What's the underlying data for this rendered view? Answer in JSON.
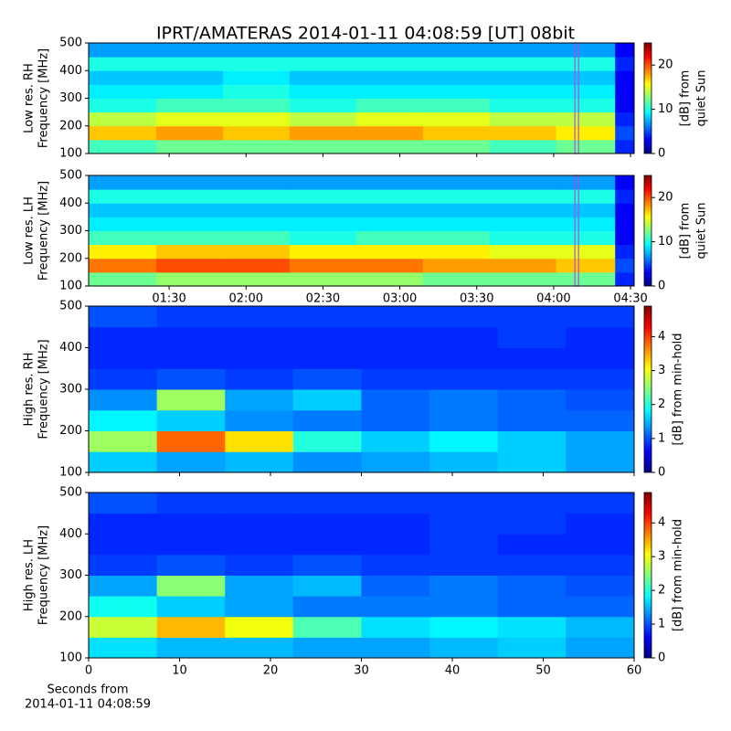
{
  "title": "IPRT/AMATERAS 2014-01-11 04:08:59 [UT]   08bit",
  "chart_data": [
    {
      "type": "heatmap",
      "ylabel": [
        "Low res. RH",
        "Frequency [MHz]"
      ],
      "colorbar_label": [
        "[dB] from",
        "quiet Sun"
      ],
      "clim": [
        0,
        25
      ],
      "cticks": [
        0,
        10,
        20
      ],
      "xlim": [
        58.6,
        271.4
      ],
      "share_x_with": 1,
      "x_bins": [
        58.6,
        85,
        111,
        137,
        163,
        189,
        215,
        241,
        264,
        271.4
      ],
      "ylim": [
        100,
        500
      ],
      "yticks": [
        100,
        200,
        300,
        400,
        500
      ],
      "y_bins": [
        100,
        150,
        200,
        250,
        300,
        350,
        400,
        450,
        500
      ],
      "marker_x": 249,
      "marker_color": "#b050d8",
      "z": [
        [
          11,
          12,
          12,
          12,
          12,
          12,
          11,
          12,
          4
        ],
        [
          17,
          18,
          17,
          18,
          18,
          17,
          17,
          16,
          5
        ],
        [
          14,
          15,
          15,
          14,
          15,
          15,
          14,
          14,
          4
        ],
        [
          10,
          11,
          11,
          10,
          11,
          11,
          10,
          10,
          3
        ],
        [
          9,
          9,
          10,
          9,
          9,
          9,
          9,
          9,
          3
        ],
        [
          8,
          8,
          9,
          8,
          8,
          8,
          8,
          8,
          3
        ],
        [
          10,
          10,
          10,
          10,
          10,
          10,
          10,
          10,
          4
        ],
        [
          7,
          7,
          7,
          7,
          7,
          7,
          7,
          7,
          3
        ]
      ]
    },
    {
      "type": "heatmap",
      "ylabel": [
        "Low res. LH",
        "Frequency [MHz]"
      ],
      "colorbar_label": [
        "[dB] from",
        "quiet Sun"
      ],
      "clim": [
        0,
        25
      ],
      "cticks": [
        0,
        10,
        20
      ],
      "xlim": [
        58.6,
        271.4
      ],
      "xticks": [
        {
          "value": 90,
          "label": "01:30"
        },
        {
          "value": 120,
          "label": "02:00"
        },
        {
          "value": 150,
          "label": "02:30"
        },
        {
          "value": 180,
          "label": "03:00"
        },
        {
          "value": 210,
          "label": "03:30"
        },
        {
          "value": 240,
          "label": "04:00"
        },
        {
          "value": 270,
          "label": "04:30"
        }
      ],
      "x_bins": [
        58.6,
        85,
        111,
        137,
        163,
        189,
        215,
        241,
        264,
        271.4
      ],
      "ylim": [
        100,
        500
      ],
      "yticks": [
        100,
        200,
        300,
        400,
        500
      ],
      "y_bins": [
        100,
        150,
        200,
        250,
        300,
        350,
        400,
        450,
        500
      ],
      "marker_x": 249,
      "marker_color": "#b050d8",
      "z": [
        [
          12,
          13,
          13,
          13,
          13,
          12,
          12,
          12,
          4
        ],
        [
          19,
          20,
          20,
          19,
          19,
          18,
          18,
          17,
          5
        ],
        [
          16,
          17,
          17,
          16,
          16,
          16,
          15,
          15,
          4
        ],
        [
          11,
          11,
          11,
          10,
          11,
          11,
          10,
          10,
          3
        ],
        [
          9,
          9,
          9,
          9,
          9,
          9,
          9,
          9,
          3
        ],
        [
          8,
          8,
          8,
          8,
          8,
          8,
          8,
          8,
          3
        ],
        [
          10,
          10,
          10,
          10,
          10,
          10,
          10,
          10,
          4
        ],
        [
          7,
          7,
          7,
          7,
          7,
          7,
          7,
          7,
          3
        ]
      ]
    },
    {
      "type": "heatmap",
      "ylabel": [
        "High res. RH",
        "Frequency [MHz]"
      ],
      "colorbar_label": [
        "[dB] from min-hold"
      ],
      "clim": [
        0,
        4.9
      ],
      "cticks": [
        0,
        1,
        2,
        3,
        4
      ],
      "xlim": [
        0,
        60
      ],
      "share_x_with": 3,
      "x_bins": [
        0,
        7.5,
        15,
        22.5,
        30,
        37.5,
        45,
        52.5,
        60
      ],
      "ylim": [
        100,
        500
      ],
      "yticks": [
        100,
        200,
        300,
        400,
        500
      ],
      "y_bins": [
        100,
        150,
        200,
        250,
        300,
        350,
        400,
        450,
        500
      ],
      "z": [
        [
          1.6,
          1.4,
          1.5,
          1.3,
          1.4,
          1.5,
          1.6,
          1.4
        ],
        [
          2.6,
          3.8,
          3.2,
          2.0,
          1.6,
          1.8,
          1.6,
          1.4
        ],
        [
          1.8,
          1.6,
          1.3,
          1.2,
          1.1,
          1.2,
          1.1,
          1.1
        ],
        [
          1.3,
          2.6,
          1.4,
          1.6,
          1.1,
          1.2,
          1.1,
          1.0
        ],
        [
          0.9,
          1.0,
          0.9,
          1.0,
          0.9,
          0.9,
          0.9,
          0.9
        ],
        [
          0.8,
          0.8,
          0.8,
          0.8,
          0.8,
          0.8,
          0.8,
          0.8
        ],
        [
          0.8,
          0.8,
          0.8,
          0.8,
          0.8,
          0.8,
          0.9,
          0.8
        ],
        [
          1.0,
          0.9,
          0.9,
          0.9,
          0.9,
          0.9,
          0.9,
          0.9
        ]
      ]
    },
    {
      "type": "heatmap",
      "ylabel": [
        "High res. LH",
        "Frequency [MHz]"
      ],
      "colorbar_label": [
        "[dB] from min-hold"
      ],
      "clim": [
        0,
        4.9
      ],
      "cticks": [
        0,
        1,
        2,
        3,
        4
      ],
      "xlim": [
        0,
        60
      ],
      "xticks": [
        0,
        10,
        20,
        30,
        40,
        50,
        60
      ],
      "xlabel": [
        "Seconds from",
        "2014-01-11 04:08:59"
      ],
      "x_bins": [
        0,
        7.5,
        15,
        22.5,
        30,
        37.5,
        45,
        52.5,
        60
      ],
      "ylim": [
        100,
        500
      ],
      "yticks": [
        100,
        200,
        300,
        400,
        500
      ],
      "y_bins": [
        100,
        150,
        200,
        250,
        300,
        350,
        400,
        450,
        500
      ],
      "z": [
        [
          1.7,
          1.5,
          1.5,
          1.4,
          1.4,
          1.5,
          1.6,
          1.4
        ],
        [
          2.8,
          3.4,
          3.0,
          2.2,
          1.7,
          1.8,
          1.7,
          1.5
        ],
        [
          1.9,
          1.6,
          1.4,
          1.2,
          1.2,
          1.2,
          1.1,
          1.1
        ],
        [
          1.4,
          2.5,
          1.4,
          1.5,
          1.1,
          1.2,
          1.1,
          1.0
        ],
        [
          0.9,
          1.0,
          0.9,
          1.0,
          0.9,
          0.9,
          0.9,
          0.9
        ],
        [
          0.8,
          0.8,
          0.8,
          0.8,
          0.8,
          0.9,
          0.8,
          0.8
        ],
        [
          0.8,
          0.8,
          0.8,
          0.8,
          0.8,
          0.9,
          0.9,
          0.8
        ],
        [
          1.0,
          0.9,
          0.9,
          0.9,
          0.9,
          0.9,
          0.9,
          0.9
        ]
      ]
    }
  ]
}
